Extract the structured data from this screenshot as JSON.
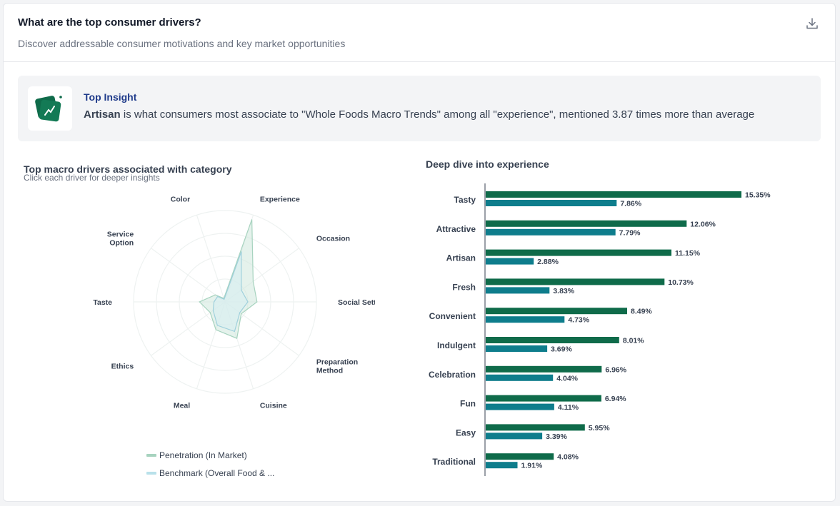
{
  "header": {
    "title": "What are the top consumer drivers?",
    "subtitle": "Discover addressable consumer motivations and key market opportunities",
    "download_icon": "download-icon"
  },
  "insight": {
    "label": "Top Insight",
    "highlight": "Artisan",
    "text": " is what consumers most associate to \"Whole Foods Macro Trends\" among all \"experience\", mentioned 3.87 times more than average"
  },
  "radar": {
    "title": "Top macro drivers associated with category",
    "subtitle": "Click each driver for deeper insights"
  },
  "legend": {
    "penetration": "Penetration (In Market)",
    "benchmark": "Benchmark (Overall Food & ..."
  },
  "bars": {
    "title": "Deep dive into experience"
  },
  "colors": {
    "primary": "#0f6b4a",
    "secondary": "#0e7d8c",
    "radar_fill_1": "#cfe8dc",
    "radar_fill_2": "#d7eef3"
  },
  "chart_data": [
    {
      "type": "radar",
      "title": "Top macro drivers associated with category",
      "categories": [
        "Experience",
        "Occasion",
        "Social Setting",
        "Preparation Method",
        "Cuisine",
        "Meal",
        "Ethics",
        "Taste",
        "Service Option",
        "Color"
      ],
      "series": [
        {
          "name": "Penetration (In Market)",
          "values": [
            0.95,
            0.38,
            0.35,
            0.22,
            0.42,
            0.32,
            0.2,
            0.28,
            0.13,
            0.04
          ]
        },
        {
          "name": "Benchmark (Overall Food & ...",
          "values": [
            0.58,
            0.22,
            0.25,
            0.2,
            0.34,
            0.27,
            0.16,
            0.12,
            0.1,
            0.03
          ]
        }
      ]
    },
    {
      "type": "bar",
      "orientation": "horizontal",
      "title": "Deep dive into experience",
      "categories": [
        "Tasty",
        "Attractive",
        "Artisan",
        "Fresh",
        "Convenient",
        "Indulgent",
        "Celebration",
        "Fun",
        "Easy",
        "Traditional"
      ],
      "series": [
        {
          "name": "Penetration (In Market)",
          "values": [
            15.35,
            12.06,
            11.15,
            10.73,
            8.49,
            8.01,
            6.96,
            6.94,
            5.95,
            4.08
          ]
        },
        {
          "name": "Benchmark (Overall Food & ...",
          "values": [
            7.86,
            7.79,
            2.88,
            3.83,
            4.73,
            3.69,
            4.04,
            4.11,
            3.39,
            1.91
          ]
        }
      ],
      "value_suffix": "%"
    }
  ]
}
